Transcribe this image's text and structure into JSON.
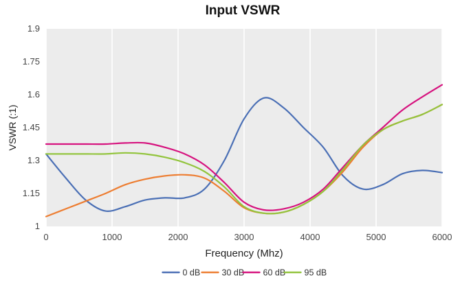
{
  "chart_data": {
    "type": "line",
    "title": "Input VSWR",
    "xlabel": "Frequency (Mhz)",
    "ylabel": "VSWR (:1)",
    "xlim": [
      0,
      6000
    ],
    "ylim": [
      1,
      1.9
    ],
    "x_ticks": [
      0,
      1000,
      2000,
      3000,
      4000,
      5000,
      6000
    ],
    "y_ticks": [
      1,
      1.15,
      1.3,
      1.45,
      1.6,
      1.75,
      1.9
    ],
    "x_tick_labels": [
      "0",
      "1000",
      "2000",
      "3000",
      "4000",
      "5000",
      "6000"
    ],
    "y_tick_labels": [
      "1",
      "1.15",
      "1.3",
      "1.45",
      "1.6",
      "1.75",
      "1.9"
    ],
    "grid": "vertical",
    "legend_position": "bottom",
    "plot_background": "#ececec",
    "series": [
      {
        "name": "0 dB",
        "color": "#4a6fb5",
        "x": [
          0,
          300,
          600,
          900,
          1200,
          1500,
          1800,
          2100,
          2400,
          2700,
          3000,
          3300,
          3600,
          3900,
          4200,
          4500,
          4800,
          5100,
          5400,
          5700,
          6000
        ],
        "y": [
          1.33,
          1.22,
          1.12,
          1.07,
          1.09,
          1.12,
          1.13,
          1.13,
          1.17,
          1.3,
          1.49,
          1.585,
          1.54,
          1.45,
          1.36,
          1.23,
          1.17,
          1.19,
          1.24,
          1.255,
          1.245
        ]
      },
      {
        "name": "30 dB",
        "color": "#ed7d31",
        "x": [
          0,
          300,
          600,
          900,
          1200,
          1500,
          1800,
          2100,
          2400,
          2700,
          3000,
          3300,
          3600,
          3900,
          4200,
          4500,
          4800,
          5100,
          5400,
          5700,
          6000
        ],
        "y": [
          1.045,
          1.08,
          1.115,
          1.15,
          1.19,
          1.215,
          1.23,
          1.235,
          1.22,
          1.16,
          1.085,
          1.06,
          1.065,
          1.1,
          1.16,
          1.25,
          1.36,
          1.44,
          1.48,
          1.51,
          1.555
        ]
      },
      {
        "name": "60 dB",
        "color": "#d6127e",
        "x": [
          0,
          300,
          600,
          900,
          1200,
          1500,
          1800,
          2100,
          2400,
          2700,
          3000,
          3300,
          3600,
          3900,
          4200,
          4500,
          4800,
          5100,
          5400,
          5700,
          6000
        ],
        "y": [
          1.375,
          1.375,
          1.375,
          1.375,
          1.38,
          1.38,
          1.36,
          1.33,
          1.28,
          1.2,
          1.11,
          1.075,
          1.08,
          1.11,
          1.17,
          1.27,
          1.37,
          1.45,
          1.53,
          1.59,
          1.645
        ]
      },
      {
        "name": "95 dB",
        "color": "#92c43c",
        "x": [
          0,
          300,
          600,
          900,
          1200,
          1500,
          1800,
          2100,
          2400,
          2700,
          3000,
          3300,
          3600,
          3900,
          4200,
          4500,
          4800,
          5100,
          5400,
          5700,
          6000
        ],
        "y": [
          1.33,
          1.33,
          1.33,
          1.33,
          1.335,
          1.33,
          1.315,
          1.29,
          1.25,
          1.18,
          1.09,
          1.06,
          1.065,
          1.1,
          1.16,
          1.26,
          1.37,
          1.44,
          1.48,
          1.51,
          1.555
        ]
      }
    ]
  }
}
